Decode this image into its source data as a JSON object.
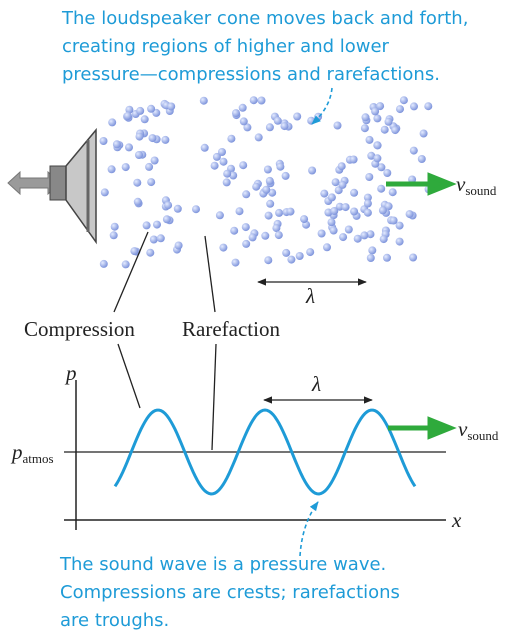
{
  "top_caption": {
    "lines": [
      "The loudspeaker cone moves back and forth,",
      "creating regions of higher and lower",
      "pressure—compressions and rarefactions."
    ]
  },
  "upper_panel": {
    "velocity_label": {
      "symbol": "v",
      "subscript": "sound"
    },
    "wavelength_label": "λ"
  },
  "labels": {
    "compression": "Compression",
    "rarefaction": "Rarefaction"
  },
  "graph": {
    "y_axis_label": "p",
    "x_axis_label": "x",
    "reference_label": {
      "symbol": "p",
      "subscript": "atmos"
    },
    "wavelength_label": "λ",
    "velocity_label": {
      "symbol": "v",
      "subscript": "sound"
    }
  },
  "bottom_caption": {
    "lines": [
      "The sound wave is a pressure wave.",
      "Compressions are crests; rarefactions",
      "are troughs."
    ]
  }
}
